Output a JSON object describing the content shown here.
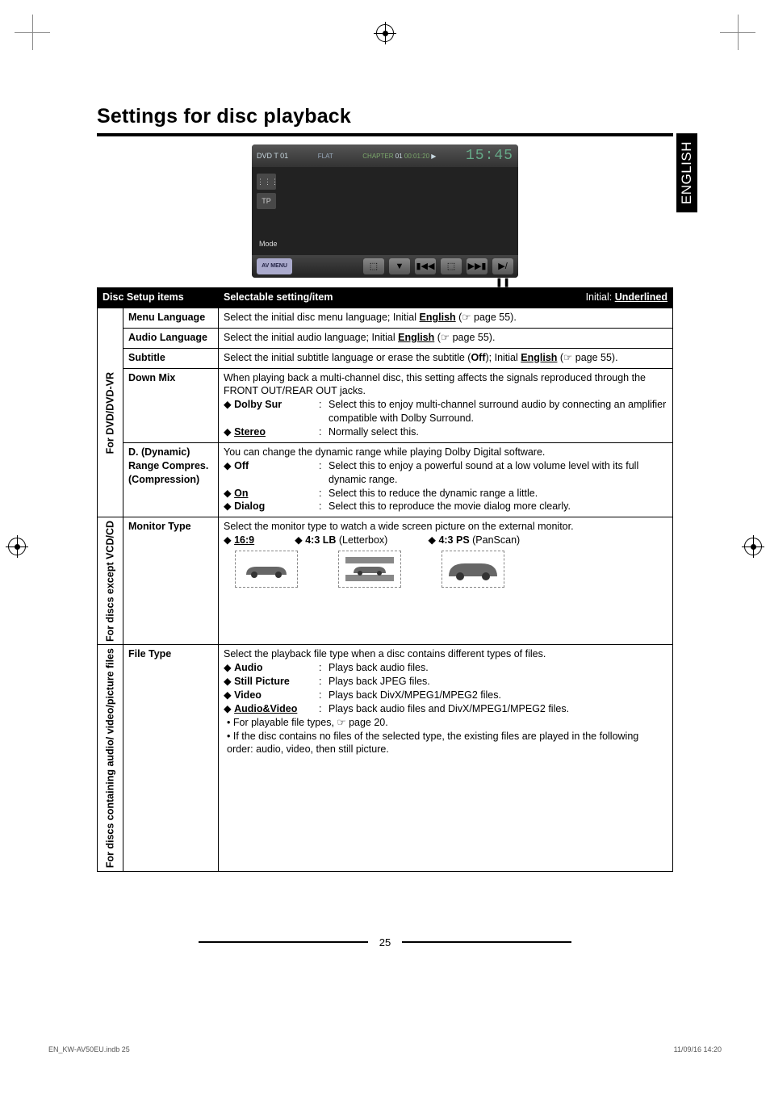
{
  "side_tab": "ENGLISH",
  "title": "Settings for disc playback",
  "screenshot": {
    "top_left": "DVD  T 01",
    "flat": "FLAT",
    "chapter_label": "CHAPTER",
    "chapter_num": "01",
    "time": "00:01:20",
    "clock": "15:45",
    "side_buttons": [
      "⋮⋮⋮",
      "TP"
    ],
    "mode": "Mode",
    "av_menu": "AV MENU",
    "bottom_buttons": [
      "⬚",
      "▼",
      "▮◀◀",
      "⬚",
      "▶▶▮",
      "▶/❚❚"
    ]
  },
  "table": {
    "header": {
      "left": "Disc Setup items",
      "mid": "Selectable setting/item",
      "right_prefix": "Initial: ",
      "right_value": "Underlined"
    },
    "groups": [
      {
        "rot": "For DVD/DVD-VR",
        "rows": [
          {
            "item": "Menu Language",
            "body": {
              "type": "line",
              "prefix": "Select the initial disc menu language; Initial ",
              "u": "English",
              "suffix": " (☞ page 55)."
            }
          },
          {
            "item": "Audio Language",
            "body": {
              "type": "line",
              "prefix": "Select the initial audio language; Initial ",
              "u": "English",
              "suffix": " (☞ page 55)."
            }
          },
          {
            "item": "Subtitle",
            "body": {
              "type": "line",
              "prefix": "Select the initial subtitle language or erase the subtitle (",
              "b": "Off",
              "mid": "); Initial ",
              "u": "English",
              "suffix": " (☞ page 55)."
            }
          },
          {
            "item": "Down Mix",
            "body": {
              "type": "block",
              "intro": "When playing back a multi-channel disc, this setting affects the signals reproduced through the FRONT OUT/REAR OUT jacks.",
              "opts": [
                {
                  "label": "Dolby Sur",
                  "u": false,
                  "desc": "Select this to enjoy multi-channel surround audio by connecting an amplifier compatible with Dolby Surround."
                },
                {
                  "label": "Stereo",
                  "u": true,
                  "desc": "Normally select this."
                }
              ]
            }
          },
          {
            "item": "D. (Dynamic) Range Compres. (Compression)",
            "body": {
              "type": "block",
              "intro": "You can change the dynamic range while playing Dolby Digital software.",
              "opts": [
                {
                  "label": "Off",
                  "u": false,
                  "desc": "Select this to enjoy a powerful sound at a low volume level with its full dynamic range."
                },
                {
                  "label": "On",
                  "u": true,
                  "desc": "Select this to reduce the dynamic range a little."
                },
                {
                  "label": "Dialog",
                  "u": false,
                  "desc": "Select this to reproduce the movie dialog more clearly."
                }
              ]
            }
          }
        ]
      },
      {
        "rot": "For discs except VCD/CD",
        "rows": [
          {
            "item": "Monitor Type",
            "body": {
              "type": "monitor",
              "intro": "Select the monitor type to watch a wide screen picture on the external monitor.",
              "opts": [
                {
                  "label": "16:9",
                  "u": true
                },
                {
                  "label": "4:3 LB",
                  "paren": "(Letterbox)"
                },
                {
                  "label": "4:3 PS",
                  "paren": "(PanScan)"
                }
              ]
            }
          }
        ]
      },
      {
        "rot": "For discs containing audio/ video/picture files",
        "rows": [
          {
            "item": "File Type",
            "body": {
              "type": "block",
              "intro": "Select the playback file type when a disc contains different types of files.",
              "opts": [
                {
                  "label": "Audio",
                  "u": false,
                  "desc": "Plays back audio files."
                },
                {
                  "label": "Still Picture",
                  "u": false,
                  "desc": "Plays back JPEG files."
                },
                {
                  "label": "Video",
                  "u": false,
                  "desc": "Plays back DivX/MPEG1/MPEG2 files."
                },
                {
                  "label": "Audio&Video",
                  "u": true,
                  "desc": "Plays back audio files and DivX/MPEG1/MPEG2 files."
                }
              ],
              "bullets": [
                "For playable file types, ☞ page 20.",
                "If the disc contains no files of the selected type, the existing files are played in the following order: audio, video, then still picture."
              ]
            }
          }
        ]
      }
    ]
  },
  "page_number": "25",
  "footer_left": "EN_KW-AV50EU.indb   25",
  "footer_right": "11/09/16   14:20"
}
